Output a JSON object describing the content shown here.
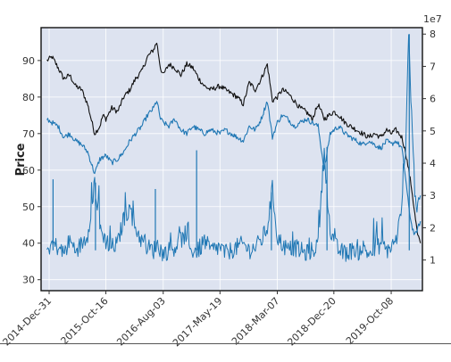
{
  "chart_data": {
    "type": "line",
    "title": "",
    "xlabel": "",
    "ylabel": "Price",
    "y2_scale_label": "1e7",
    "grid": true,
    "background": "#dde3f0",
    "x_dates": [
      "2014-Dec-31",
      "2015-Oct-16",
      "2016-Aug-03",
      "2017-May-19",
      "2018-Mar-07",
      "2018-Dec-20",
      "2019-Oct-08"
    ],
    "x_range": [
      "2014-Nov-20",
      "2020-Mar-15"
    ],
    "ylim": [
      27,
      99
    ],
    "y_ticks": [
      30,
      40,
      50,
      60,
      70,
      80,
      90
    ],
    "y2lim": [
      0.05,
      8.2
    ],
    "y2_ticks": [
      1,
      2,
      3,
      4,
      5,
      6,
      7,
      8
    ],
    "series": [
      {
        "color": "#111111",
        "axis": "left",
        "points": [
          [
            "2014-Dec-20",
            90
          ],
          [
            "2015-Jan-15",
            91
          ],
          [
            "2015-Feb-15",
            88
          ],
          [
            "2015-Mar-15",
            85
          ],
          [
            "2015-Apr-15",
            86
          ],
          [
            "2015-May-15",
            83
          ],
          [
            "2015-Jun-15",
            82
          ],
          [
            "2015-Jul-15",
            78
          ],
          [
            "2015-Aug-20",
            70
          ],
          [
            "2015-Sep-15",
            72
          ],
          [
            "2015-Oct-01",
            75
          ],
          [
            "2015-Oct-16",
            74
          ],
          [
            "2015-Nov-15",
            77
          ],
          [
            "2015-Dec-15",
            76
          ],
          [
            "2016-Jan-15",
            80
          ],
          [
            "2016-Feb-15",
            82
          ],
          [
            "2016-Mar-15",
            85
          ],
          [
            "2016-Apr-15",
            87
          ],
          [
            "2016-May-15",
            91
          ],
          [
            "2016-Jun-15",
            93
          ],
          [
            "2016-Jul-01",
            95
          ],
          [
            "2016-Jul-20",
            88
          ],
          [
            "2016-Aug-03",
            86
          ],
          [
            "2016-Sep-01",
            89
          ],
          [
            "2016-Oct-01",
            88
          ],
          [
            "2016-Nov-01",
            86
          ],
          [
            "2016-Dec-01",
            89
          ],
          [
            "2017-Jan-01",
            88
          ],
          [
            "2017-Feb-01",
            85
          ],
          [
            "2017-Mar-01",
            83
          ],
          [
            "2017-Apr-01",
            82
          ],
          [
            "2017-May-19",
            83
          ],
          [
            "2017-Jun-15",
            82
          ],
          [
            "2017-Jul-15",
            81
          ],
          [
            "2017-Aug-15",
            80
          ],
          [
            "2017-Sep-15",
            78
          ],
          [
            "2017-Oct-15",
            84
          ],
          [
            "2017-Nov-15",
            82
          ],
          [
            "2017-Dec-15",
            85
          ],
          [
            "2018-Jan-15",
            89
          ],
          [
            "2018-Feb-10",
            79
          ],
          [
            "2018-Mar-07",
            80
          ],
          [
            "2018-Apr-01",
            82
          ],
          [
            "2018-May-01",
            81
          ],
          [
            "2018-Jun-01",
            79
          ],
          [
            "2018-Jul-01",
            77
          ],
          [
            "2018-Aug-01",
            76
          ],
          [
            "2018-Sep-01",
            74
          ],
          [
            "2018-Oct-01",
            78
          ],
          [
            "2018-Nov-01",
            74
          ],
          [
            "2018-Dec-20",
            76
          ],
          [
            "2019-Jan-15",
            75
          ],
          [
            "2019-Feb-15",
            73
          ],
          [
            "2019-Mar-15",
            72
          ],
          [
            "2019-Apr-15",
            71
          ],
          [
            "2019-May-15",
            70
          ],
          [
            "2019-Jun-15",
            69
          ],
          [
            "2019-Jul-15",
            70
          ],
          [
            "2019-Aug-15",
            69
          ],
          [
            "2019-Sep-15",
            71
          ],
          [
            "2019-Oct-08",
            70
          ],
          [
            "2019-Nov-01",
            71
          ],
          [
            "2019-Dec-01",
            69
          ],
          [
            "2019-Dec-20",
            65
          ],
          [
            "2020-Jan-05",
            60
          ],
          [
            "2020-Jan-20",
            55
          ],
          [
            "2020-Feb-05",
            48
          ],
          [
            "2020-Feb-20",
            42
          ],
          [
            "2020-Mar-05",
            40
          ]
        ]
      },
      {
        "color": "#1f77b4",
        "axis": "left",
        "points": [
          [
            "2014-Dec-20",
            74
          ],
          [
            "2015-Jan-15",
            73
          ],
          [
            "2015-Feb-15",
            72
          ],
          [
            "2015-Mar-15",
            69
          ],
          [
            "2015-Apr-15",
            70
          ],
          [
            "2015-May-15",
            68
          ],
          [
            "2015-Jun-15",
            67
          ],
          [
            "2015-Jul-15",
            65
          ],
          [
            "2015-Aug-20",
            59
          ],
          [
            "2015-Sep-15",
            63
          ],
          [
            "2015-Oct-16",
            64
          ],
          [
            "2015-Nov-15",
            62
          ],
          [
            "2015-Dec-15",
            63
          ],
          [
            "2016-Jan-15",
            65
          ],
          [
            "2016-Feb-15",
            68
          ],
          [
            "2016-Mar-15",
            70
          ],
          [
            "2016-Apr-15",
            72
          ],
          [
            "2016-May-15",
            75
          ],
          [
            "2016-Jun-15",
            77
          ],
          [
            "2016-Jul-01",
            79
          ],
          [
            "2016-Jul-20",
            74
          ],
          [
            "2016-Aug-03",
            73
          ],
          [
            "2016-Sep-01",
            72
          ],
          [
            "2016-Oct-01",
            74
          ],
          [
            "2016-Nov-01",
            71
          ],
          [
            "2016-Dec-01",
            70
          ],
          [
            "2017-Jan-01",
            72
          ],
          [
            "2017-Feb-01",
            71
          ],
          [
            "2017-Mar-01",
            70
          ],
          [
            "2017-Apr-01",
            71
          ],
          [
            "2017-May-19",
            70
          ],
          [
            "2017-Jun-15",
            71
          ],
          [
            "2017-Jul-15",
            70
          ],
          [
            "2017-Aug-15",
            69
          ],
          [
            "2017-Sep-15",
            68
          ],
          [
            "2017-Oct-15",
            72
          ],
          [
            "2017-Nov-15",
            71
          ],
          [
            "2017-Dec-15",
            74
          ],
          [
            "2018-Jan-15",
            79
          ],
          [
            "2018-Feb-10",
            69
          ],
          [
            "2018-Mar-07",
            73
          ],
          [
            "2018-Apr-01",
            75
          ],
          [
            "2018-May-01",
            74
          ],
          [
            "2018-Jun-01",
            72
          ],
          [
            "2018-Jul-01",
            73
          ],
          [
            "2018-Aug-01",
            74
          ],
          [
            "2018-Sep-01",
            73
          ],
          [
            "2018-Oct-01",
            72
          ],
          [
            "2018-Nov-01",
            60
          ],
          [
            "2018-Dec-01",
            70
          ],
          [
            "2018-Dec-20",
            71
          ],
          [
            "2019-Jan-15",
            72
          ],
          [
            "2019-Feb-15",
            70
          ],
          [
            "2019-Mar-15",
            69
          ],
          [
            "2019-Apr-15",
            68
          ],
          [
            "2019-May-15",
            67
          ],
          [
            "2019-Jun-15",
            68
          ],
          [
            "2019-Jul-15",
            67
          ],
          [
            "2019-Aug-15",
            66
          ],
          [
            "2019-Sep-15",
            68
          ],
          [
            "2019-Oct-08",
            67
          ],
          [
            "2019-Nov-01",
            68
          ],
          [
            "2019-Dec-01",
            66
          ],
          [
            "2019-Dec-20",
            58
          ],
          [
            "2020-Jan-05",
            50
          ],
          [
            "2020-Jan-20",
            45
          ],
          [
            "2020-Feb-05",
            42
          ],
          [
            "2020-Feb-20",
            44
          ],
          [
            "2020-Mar-05",
            46
          ]
        ]
      },
      {
        "color": "#1f77b4",
        "axis": "right",
        "points": [
          [
            "2014-Dec-20",
            1.3
          ],
          [
            "2015-Jan-15",
            1.5
          ],
          [
            "2015-Feb-15",
            1.4
          ],
          [
            "2015-Mar-15",
            1.2
          ],
          [
            "2015-Apr-15",
            1.6
          ],
          [
            "2015-May-15",
            1.3
          ],
          [
            "2015-Jun-15",
            1.5
          ],
          [
            "2015-Jul-15",
            1.8
          ],
          [
            "2015-Aug-20",
            3.4
          ],
          [
            "2015-Sep-15",
            2.0
          ],
          [
            "2015-Oct-16",
            1.6
          ],
          [
            "2015-Nov-15",
            1.4
          ],
          [
            "2015-Dec-15",
            1.5
          ],
          [
            "2016-Jan-15",
            2.3
          ],
          [
            "2016-Feb-15",
            2.6
          ],
          [
            "2016-Mar-15",
            2.0
          ],
          [
            "2016-Apr-15",
            1.6
          ],
          [
            "2016-May-15",
            1.4
          ],
          [
            "2016-Jun-15",
            1.3
          ],
          [
            "2016-Jul-01",
            1.5
          ],
          [
            "2016-Aug-03",
            1.2
          ],
          [
            "2016-Sep-01",
            1.3
          ],
          [
            "2016-Oct-01",
            1.4
          ],
          [
            "2016-Nov-01",
            1.7
          ],
          [
            "2016-Dec-01",
            1.4
          ],
          [
            "2017-Jan-01",
            1.3
          ],
          [
            "2017-Feb-01",
            1.3
          ],
          [
            "2017-Mar-01",
            1.6
          ],
          [
            "2017-Apr-01",
            1.3
          ],
          [
            "2017-May-19",
            1.4
          ],
          [
            "2017-Jun-15",
            1.2
          ],
          [
            "2017-Jul-15",
            1.3
          ],
          [
            "2017-Aug-15",
            1.4
          ],
          [
            "2017-Sep-15",
            1.5
          ],
          [
            "2017-Oct-15",
            1.3
          ],
          [
            "2017-Nov-15",
            1.4
          ],
          [
            "2017-Dec-15",
            1.6
          ],
          [
            "2018-Jan-15",
            2.0
          ],
          [
            "2018-Feb-10",
            3.2
          ],
          [
            "2018-Mar-07",
            1.7
          ],
          [
            "2018-Apr-01",
            1.5
          ],
          [
            "2018-May-01",
            1.3
          ],
          [
            "2018-Jun-01",
            1.4
          ],
          [
            "2018-Jul-01",
            1.3
          ],
          [
            "2018-Aug-01",
            1.2
          ],
          [
            "2018-Sep-01",
            1.3
          ],
          [
            "2018-Oct-01",
            1.5
          ],
          [
            "2018-Nov-01",
            4.4
          ],
          [
            "2018-Dec-01",
            1.8
          ],
          [
            "2018-Dec-20",
            1.5
          ],
          [
            "2019-Jan-15",
            1.3
          ],
          [
            "2019-Feb-15",
            1.2
          ],
          [
            "2019-Mar-15",
            1.3
          ],
          [
            "2019-Apr-15",
            1.2
          ],
          [
            "2019-May-15",
            1.4
          ],
          [
            "2019-Jun-15",
            1.2
          ],
          [
            "2019-Jul-15",
            1.3
          ],
          [
            "2019-Aug-15",
            1.5
          ],
          [
            "2019-Sep-15",
            1.3
          ],
          [
            "2019-Oct-08",
            1.4
          ],
          [
            "2019-Nov-01",
            1.6
          ],
          [
            "2019-Dec-01",
            2.5
          ],
          [
            "2019-Dec-20",
            4.5
          ],
          [
            "2020-Jan-05",
            8.0
          ],
          [
            "2020-Jan-20",
            5.5
          ],
          [
            "2020-Feb-05",
            3.2
          ],
          [
            "2020-Feb-20",
            2.5
          ],
          [
            "2020-Mar-05",
            3.0
          ]
        ]
      }
    ],
    "spikes": [
      {
        "date": "2015-Jan-20",
        "value": 3.5,
        "axis": "right"
      },
      {
        "date": "2015-Aug-24",
        "value": 3.4,
        "axis": "right"
      },
      {
        "date": "2016-Jun-24",
        "value": 3.2,
        "axis": "right"
      },
      {
        "date": "2017-Jan-20",
        "value": 4.4,
        "axis": "right"
      },
      {
        "date": "2018-Feb-05",
        "value": 3.1,
        "axis": "right"
      },
      {
        "date": "2018-Nov-15",
        "value": 4.5,
        "axis": "right"
      },
      {
        "date": "2020-Jan-08",
        "value": 8.0,
        "axis": "right"
      }
    ]
  }
}
